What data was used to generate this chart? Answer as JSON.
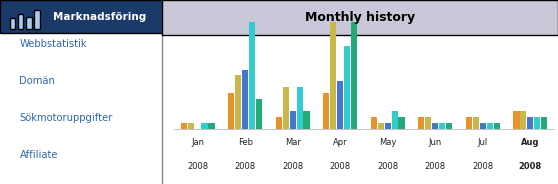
{
  "title": "Monthly history",
  "months": [
    "Jan\n2008",
    "Feb\n2008",
    "Mar\n2008",
    "Apr\n2008",
    "May\n2008",
    "Jun\n2008",
    "Jul\n2008",
    "Aug\n2008"
  ],
  "bar_colors": [
    "#E8922A",
    "#C8B84A",
    "#4477CC",
    "#33CCCC",
    "#22AA77"
  ],
  "bar_data": {
    "orange": [
      1,
      6,
      2,
      6,
      2,
      2,
      2,
      3
    ],
    "yellow": [
      1,
      9,
      7,
      18,
      1,
      2,
      2,
      3
    ],
    "blue": [
      0,
      10,
      3,
      8,
      1,
      1,
      1,
      2
    ],
    "cyan": [
      1,
      18,
      7,
      14,
      3,
      1,
      1,
      2
    ],
    "green": [
      1,
      5,
      3,
      18,
      2,
      1,
      1,
      2
    ]
  },
  "left_panel_bg": "#A8C8E8",
  "left_panel_header_bg": "#1A3A6A",
  "left_panel_header_text": "Marknadsföring",
  "left_panel_header_text_color": "#FFFFFF",
  "left_panel_menu_items": [
    "Webbstatistik",
    "Domän",
    "Sökmotoruppgifter",
    "Affiliate"
  ],
  "left_panel_menu_color": "#3366AA",
  "chart_bg": "#FFFFFF",
  "title_bg": "#C8C8D8",
  "figsize": [
    5.58,
    1.84
  ],
  "dpi": 100
}
